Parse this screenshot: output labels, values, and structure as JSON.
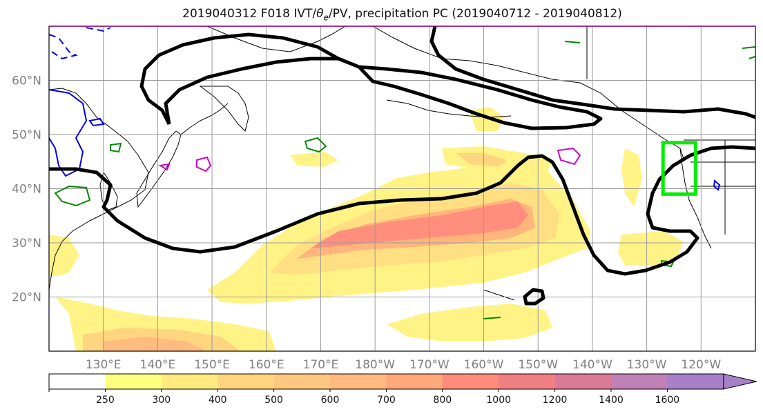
{
  "title": {
    "prefix": "2019040312 F018 IVT/",
    "theta": "θ",
    "theta_sub": "e",
    "suffix": "/PV, precipitation PC (2019040712 - 2019040812)"
  },
  "map_data": {
    "type": "map",
    "projection": "PlateCarree",
    "lon_range_east": [
      120,
      250
    ],
    "lat_range": [
      10,
      70
    ],
    "lat_ticks": [
      {
        "value": 20,
        "label": "20°N"
      },
      {
        "value": 30,
        "label": "30°N"
      },
      {
        "value": 40,
        "label": "40°N"
      },
      {
        "value": 50,
        "label": "50°N"
      },
      {
        "value": 60,
        "label": "60°N"
      }
    ],
    "lon_ticks": [
      {
        "value": 130,
        "label": "130°E"
      },
      {
        "value": 140,
        "label": "140°E"
      },
      {
        "value": 150,
        "label": "150°E"
      },
      {
        "value": 160,
        "label": "160°E"
      },
      {
        "value": 170,
        "label": "170°E"
      },
      {
        "value": 180,
        "label": "180°W"
      },
      {
        "value": 190,
        "label": "170°W"
      },
      {
        "value": 200,
        "label": "160°W"
      },
      {
        "value": 210,
        "label": "150°W"
      },
      {
        "value": 220,
        "label": "140°W"
      },
      {
        "value": 230,
        "label": "130°W"
      },
      {
        "value": 240,
        "label": "120°W"
      }
    ],
    "grid": true,
    "highlight_box": {
      "lon": [
        233,
        239
      ],
      "lat": [
        39,
        48.5
      ],
      "color": "#00ee00"
    },
    "colorbar": {
      "levels": [
        0,
        250,
        300,
        400,
        500,
        600,
        700,
        800,
        1000,
        1200,
        1400,
        1600
      ],
      "labels": [
        "250",
        "300",
        "400",
        "500",
        "600",
        "700",
        "800",
        "1000",
        "1200",
        "1400",
        "1600"
      ],
      "colors": [
        "#ffffff",
        "#ffff80",
        "#ffea80",
        "#ffd580",
        "#ffc880",
        "#ffbb80",
        "#ffa87a",
        "#ff8c7a",
        "#f08084",
        "#db7a96",
        "#c080b8",
        "#a880c8"
      ],
      "extend": "max"
    }
  }
}
